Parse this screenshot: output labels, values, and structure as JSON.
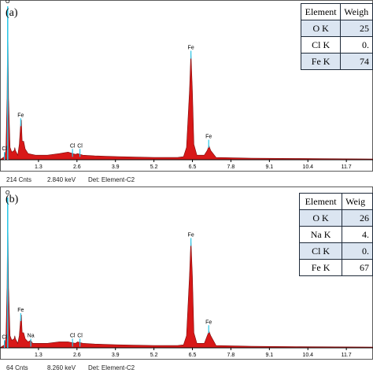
{
  "chart_data": [
    {
      "type": "area",
      "panel_label": "(a)",
      "xlim": [
        0,
        12.6
      ],
      "x_ticks": [
        "1.3",
        "2.6",
        "3.9",
        "5.2",
        "6.5",
        "7.8",
        "9.1",
        "10.4",
        "11.7"
      ],
      "spectrum": [
        [
          0,
          0
        ],
        [
          0.15,
          2
        ],
        [
          0.2,
          6
        ],
        [
          0.24,
          40
        ],
        [
          0.26,
          100
        ],
        [
          0.29,
          40
        ],
        [
          0.34,
          8
        ],
        [
          0.4,
          5
        ],
        [
          0.48,
          6
        ],
        [
          0.5,
          8
        ],
        [
          0.52,
          6
        ],
        [
          0.6,
          3
        ],
        [
          0.65,
          10
        ],
        [
          0.7,
          24
        ],
        [
          0.72,
          26
        ],
        [
          0.75,
          12
        ],
        [
          0.8,
          12
        ],
        [
          0.85,
          7
        ],
        [
          0.95,
          4
        ],
        [
          1.2,
          3
        ],
        [
          1.6,
          3
        ],
        [
          2.0,
          4
        ],
        [
          2.3,
          5
        ],
        [
          2.55,
          3.5
        ],
        [
          2.62,
          4
        ],
        [
          2.8,
          3
        ],
        [
          3.2,
          2.5
        ],
        [
          4.0,
          2
        ],
        [
          5.2,
          1.5
        ],
        [
          6.0,
          1.5
        ],
        [
          6.2,
          2
        ],
        [
          6.3,
          8
        ],
        [
          6.4,
          45
        ],
        [
          6.45,
          70
        ],
        [
          6.5,
          45
        ],
        [
          6.55,
          10
        ],
        [
          6.65,
          3
        ],
        [
          6.9,
          3
        ],
        [
          7.0,
          6
        ],
        [
          7.06,
          9
        ],
        [
          7.12,
          6
        ],
        [
          7.3,
          1.5
        ],
        [
          8.5,
          1
        ],
        [
          10.0,
          0.8
        ],
        [
          12.6,
          0.5
        ]
      ],
      "peak_labels": [
        {
          "label": "O",
          "x": 0.26,
          "y": 100
        },
        {
          "label": "Fe",
          "x": 0.7,
          "y": 26
        },
        {
          "label": "Cl",
          "x": 0.15,
          "y": 4
        },
        {
          "label": "Cl",
          "x": 2.45,
          "y": 6
        },
        {
          "label": "Cl",
          "x": 2.7,
          "y": 6
        },
        {
          "label": "Fe",
          "x": 6.45,
          "y": 70
        },
        {
          "label": "Fe",
          "x": 7.05,
          "y": 12
        }
      ],
      "table": {
        "headers": [
          "Element",
          "Weigh"
        ],
        "rows": [
          [
            "O K",
            "25"
          ],
          [
            "Cl K",
            "0."
          ],
          [
            "Fe K",
            "74"
          ]
        ]
      },
      "status": {
        "counts": "214 Cnts",
        "energy": "2.840 keV",
        "det": "Det: Element-C2"
      }
    },
    {
      "type": "area",
      "panel_label": "(b)",
      "xlim": [
        0,
        12.6
      ],
      "x_ticks": [
        "1.3",
        "2.6",
        "3.9",
        "5.2",
        "6.5",
        "7.8",
        "9.1",
        "10.4",
        "11.7"
      ],
      "spectrum": [
        [
          0,
          0
        ],
        [
          0.15,
          2
        ],
        [
          0.2,
          6
        ],
        [
          0.24,
          40
        ],
        [
          0.26,
          100
        ],
        [
          0.29,
          40
        ],
        [
          0.34,
          8
        ],
        [
          0.4,
          5
        ],
        [
          0.48,
          6
        ],
        [
          0.5,
          8
        ],
        [
          0.52,
          6
        ],
        [
          0.6,
          3
        ],
        [
          0.65,
          8
        ],
        [
          0.7,
          20
        ],
        [
          0.72,
          22
        ],
        [
          0.75,
          10
        ],
        [
          0.8,
          10
        ],
        [
          0.85,
          6
        ],
        [
          0.95,
          4
        ],
        [
          1.04,
          5
        ],
        [
          1.1,
          3
        ],
        [
          1.6,
          3
        ],
        [
          2.0,
          4
        ],
        [
          2.3,
          4
        ],
        [
          2.55,
          3
        ],
        [
          2.62,
          4
        ],
        [
          2.8,
          3
        ],
        [
          3.2,
          2.5
        ],
        [
          4.0,
          2
        ],
        [
          5.2,
          1.5
        ],
        [
          6.0,
          1.5
        ],
        [
          6.2,
          2
        ],
        [
          6.3,
          8
        ],
        [
          6.4,
          48
        ],
        [
          6.45,
          72
        ],
        [
          6.5,
          48
        ],
        [
          6.55,
          10
        ],
        [
          6.65,
          3
        ],
        [
          6.9,
          3
        ],
        [
          7.0,
          8
        ],
        [
          7.06,
          11
        ],
        [
          7.12,
          8
        ],
        [
          7.3,
          1.5
        ],
        [
          8.5,
          1
        ],
        [
          10.0,
          0.8
        ],
        [
          12.6,
          0.5
        ]
      ],
      "peak_labels": [
        {
          "label": "O",
          "x": 0.26,
          "y": 100
        },
        {
          "label": "Fe",
          "x": 0.7,
          "y": 22
        },
        {
          "label": "Cl",
          "x": 0.15,
          "y": 4
        },
        {
          "label": "Na",
          "x": 1.04,
          "y": 5
        },
        {
          "label": "Cl",
          "x": 2.45,
          "y": 5
        },
        {
          "label": "Cl",
          "x": 2.7,
          "y": 5
        },
        {
          "label": "Fe",
          "x": 6.45,
          "y": 72
        },
        {
          "label": "Fe",
          "x": 7.05,
          "y": 14
        }
      ],
      "table": {
        "headers": [
          "Element",
          "Weig"
        ],
        "rows": [
          [
            "O K",
            "26"
          ],
          [
            "Na K",
            "4."
          ],
          [
            "Cl K",
            "0."
          ],
          [
            "Fe K",
            "67"
          ]
        ]
      },
      "status": {
        "counts": "64 Cnts",
        "energy": "8.260 keV",
        "det": "Det: Element-C2"
      }
    }
  ],
  "colors": {
    "fill": "#d81818",
    "outline": "#7a0a0a",
    "marker": "#29c7e8",
    "axis": "#000000",
    "frame": "#5a5a5a"
  }
}
